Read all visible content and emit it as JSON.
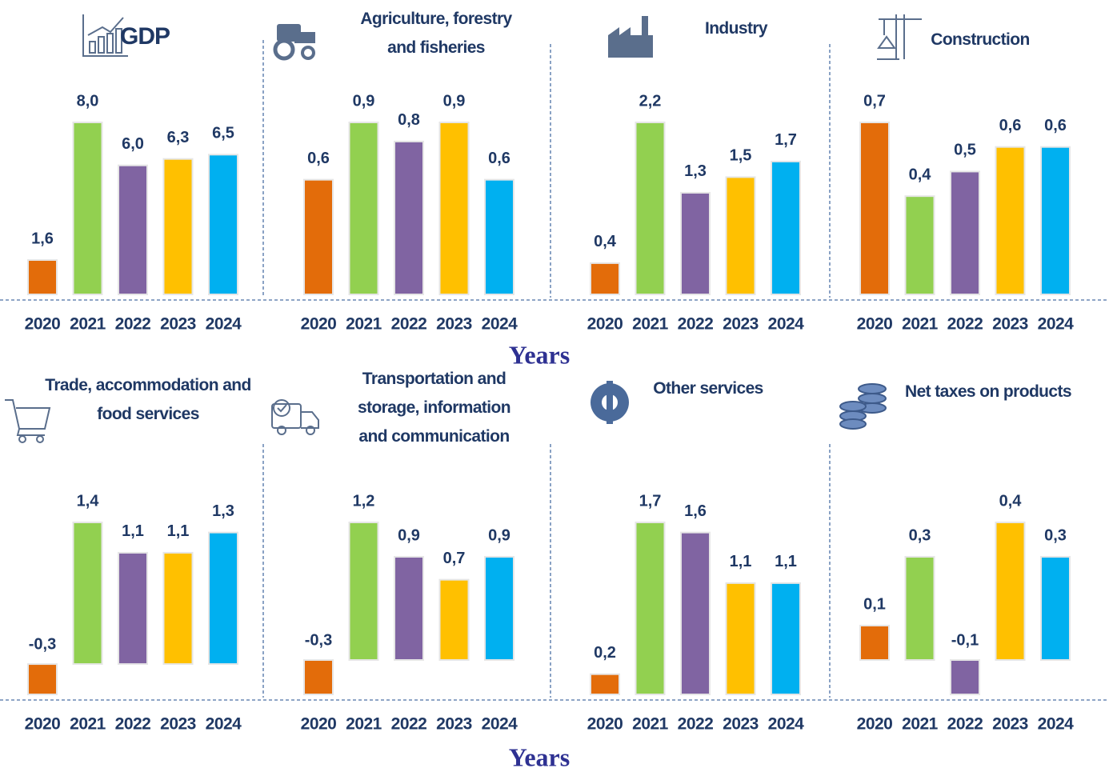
{
  "chart_data": [
    {
      "type": "bar",
      "title": "GDP",
      "categories": [
        "2020",
        "2021",
        "2022",
        "2023",
        "2024"
      ],
      "values": [
        1.6,
        8.0,
        6.0,
        6.3,
        6.5
      ],
      "value_labels": [
        "1,6",
        "8,0",
        "6,0",
        "6,3",
        "6,5"
      ],
      "colors": [
        "#e36c0a",
        "#92d050",
        "#8064a2",
        "#ffc000",
        "#00b0f0"
      ]
    },
    {
      "type": "bar",
      "title": "Agriculture, forestry and fisheries",
      "categories": [
        "2020",
        "2021",
        "2022",
        "2023",
        "2024"
      ],
      "values": [
        0.6,
        0.9,
        0.8,
        0.9,
        0.6
      ],
      "value_labels": [
        "0,6",
        "0,9",
        "0,8",
        "0,9",
        "0,6"
      ],
      "colors": [
        "#e36c0a",
        "#92d050",
        "#8064a2",
        "#ffc000",
        "#00b0f0"
      ]
    },
    {
      "type": "bar",
      "title": "Industry",
      "categories": [
        "2020",
        "2021",
        "2022",
        "2023",
        "2024"
      ],
      "values": [
        0.4,
        2.2,
        1.3,
        1.5,
        1.7
      ],
      "value_labels": [
        "0,4",
        "2,2",
        "1,3",
        "1,5",
        "1,7"
      ],
      "colors": [
        "#e36c0a",
        "#92d050",
        "#8064a2",
        "#ffc000",
        "#00b0f0"
      ]
    },
    {
      "type": "bar",
      "title": "Construction",
      "categories": [
        "2020",
        "2021",
        "2022",
        "2023",
        "2024"
      ],
      "values": [
        0.7,
        0.4,
        0.5,
        0.6,
        0.6
      ],
      "value_labels": [
        "0,7",
        "0,4",
        "0,5",
        "0,6",
        "0,6"
      ],
      "colors": [
        "#e36c0a",
        "#92d050",
        "#8064a2",
        "#ffc000",
        "#00b0f0"
      ]
    },
    {
      "type": "bar",
      "title": "Trade, accommodation and food services",
      "categories": [
        "2020",
        "2021",
        "2022",
        "2023",
        "2024"
      ],
      "values": [
        -0.3,
        1.4,
        1.1,
        1.1,
        1.3
      ],
      "value_labels": [
        "-0,3",
        "1,4",
        "1,1",
        "1,1",
        "1,3"
      ],
      "colors": [
        "#e36c0a",
        "#92d050",
        "#8064a2",
        "#ffc000",
        "#00b0f0"
      ]
    },
    {
      "type": "bar",
      "title": "Transportation and storage, information and communication",
      "categories": [
        "2020",
        "2021",
        "2022",
        "2023",
        "2024"
      ],
      "values": [
        -0.3,
        1.2,
        0.9,
        0.7,
        0.9
      ],
      "value_labels": [
        "-0,3",
        "1,2",
        "0,9",
        "0,7",
        "0,9"
      ],
      "colors": [
        "#e36c0a",
        "#92d050",
        "#8064a2",
        "#ffc000",
        "#00b0f0"
      ]
    },
    {
      "type": "bar",
      "title": "Other services",
      "categories": [
        "2020",
        "2021",
        "2022",
        "2023",
        "2024"
      ],
      "values": [
        0.2,
        1.7,
        1.6,
        1.1,
        1.1
      ],
      "value_labels": [
        "0,2",
        "1,7",
        "1,6",
        "1,1",
        "1,1"
      ],
      "colors": [
        "#e36c0a",
        "#92d050",
        "#8064a2",
        "#ffc000",
        "#00b0f0"
      ]
    },
    {
      "type": "bar",
      "title": "Net taxes on products",
      "categories": [
        "2020",
        "2021",
        "2022",
        "2023",
        "2024"
      ],
      "values": [
        0.1,
        0.3,
        -0.1,
        0.4,
        0.3
      ],
      "value_labels": [
        "0,1",
        "0,3",
        "-0,1",
        "0,4",
        "0,3"
      ],
      "colors": [
        "#e36c0a",
        "#92d050",
        "#8064a2",
        "#ffc000",
        "#00b0f0"
      ]
    }
  ],
  "axis_labels": [
    "Years",
    "Years"
  ]
}
